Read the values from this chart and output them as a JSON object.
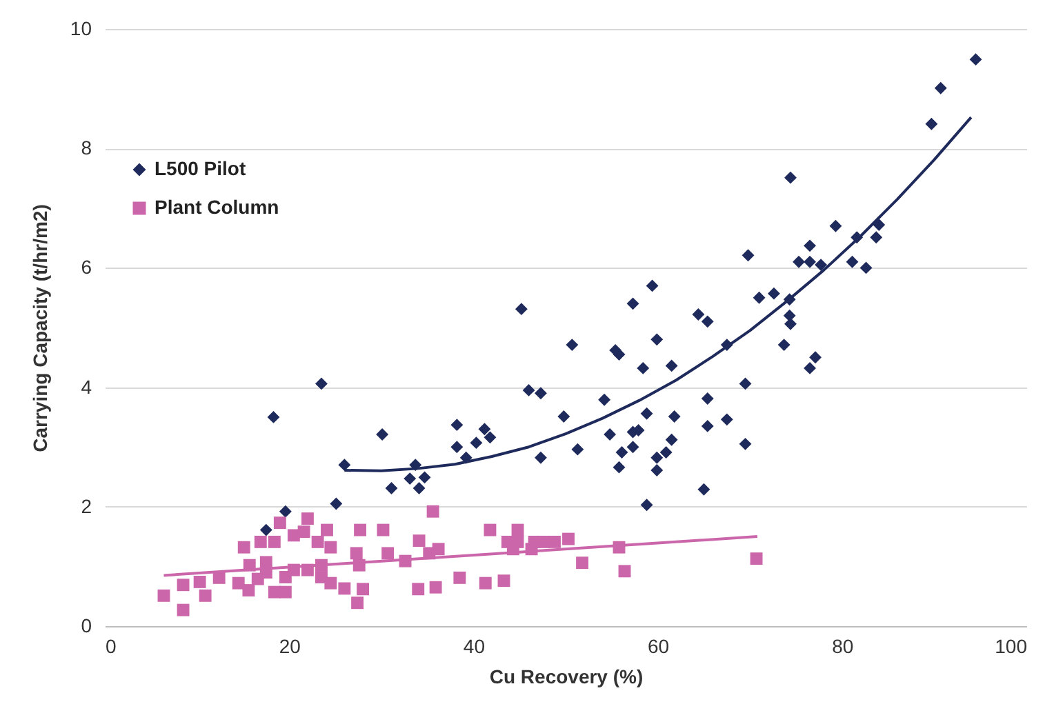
{
  "chart_data": {
    "type": "scatter",
    "xlabel": "Cu Recovery (%)",
    "ylabel": "Carrying Capacity (t/hr/m2)",
    "xlim": [
      0,
      100
    ],
    "xticks": [
      0,
      20,
      40,
      60,
      80,
      100
    ],
    "ylim": [
      0,
      10
    ],
    "yticks": [
      0,
      2,
      4,
      6,
      8,
      10
    ],
    "grid": "y",
    "legend": "top left",
    "series": [
      {
        "name": "L500 Pilot",
        "color": "#1f2a5c",
        "marker": "diamond",
        "x": [
          18.3,
          23.5,
          30.1,
          38.2,
          38.2,
          26.0,
          33.7,
          33.1,
          34.7,
          31.1,
          34.1,
          25.1,
          19.6,
          17.5,
          39.2,
          40.3,
          41.2,
          41.8,
          45.2,
          46.0,
          47.3,
          47.3,
          49.8,
          50.7,
          51.3,
          54.2,
          54.8,
          55.4,
          55.8,
          55.8,
          56.1,
          57.3,
          57.3,
          57.9,
          57.3,
          58.4,
          58.8,
          58.8,
          59.4,
          59.9,
          59.9,
          59.9,
          60.9,
          61.5,
          61.5,
          61.8,
          64.4,
          65.4,
          65.4,
          65.4,
          65.0,
          67.5,
          67.5,
          69.5,
          69.5,
          69.8,
          71.0,
          72.6,
          74.3,
          74.3,
          74.4,
          73.7,
          74.4,
          75.3,
          76.5,
          76.5,
          77.7,
          77.1,
          76.5,
          79.3,
          81.1,
          81.6,
          82.6,
          83.7,
          84.0,
          89.7,
          90.7,
          94.5
        ],
        "values": [
          3.5,
          4.06,
          3.21,
          3.37,
          3.0,
          2.7,
          2.7,
          2.47,
          2.49,
          2.31,
          2.31,
          2.05,
          1.92,
          1.61,
          2.82,
          3.07,
          3.3,
          3.16,
          5.31,
          3.95,
          3.9,
          2.82,
          3.51,
          4.71,
          2.96,
          3.79,
          3.21,
          4.62,
          4.55,
          2.66,
          2.91,
          5.4,
          3.25,
          3.28,
          3.0,
          4.32,
          3.56,
          2.03,
          5.7,
          4.8,
          2.82,
          2.61,
          2.91,
          3.12,
          4.36,
          3.51,
          5.22,
          5.1,
          3.81,
          3.35,
          2.29,
          4.71,
          3.46,
          4.06,
          3.05,
          6.21,
          5.5,
          5.57,
          5.47,
          5.2,
          5.06,
          4.71,
          7.51,
          6.1,
          6.37,
          6.1,
          6.05,
          4.5,
          4.32,
          6.7,
          6.1,
          6.51,
          6.0,
          6.51,
          6.72,
          8.41,
          9.01,
          9.49
        ]
      },
      {
        "name": "Plant Column",
        "color": "#cc66aa",
        "marker": "square",
        "x": [
          6.4,
          8.5,
          8.5,
          10.3,
          10.9,
          12.4,
          14.5,
          15.6,
          15.1,
          15.7,
          16.6,
          16.9,
          17.5,
          17.5,
          18.4,
          19.0,
          18.4,
          19.6,
          19.6,
          20.5,
          20.5,
          21.6,
          22.0,
          22.0,
          23.1,
          23.5,
          23.5,
          24.1,
          24.5,
          24.5,
          26.0,
          27.4,
          28.0,
          27.3,
          27.6,
          27.7,
          30.2,
          30.7,
          32.6,
          34.0,
          34.1,
          35.2,
          35.6,
          35.9,
          36.2,
          38.5,
          41.3,
          41.8,
          43.3,
          43.7,
          44.3,
          44.8,
          44.8,
          46.3,
          46.6,
          47.6,
          48.8,
          50.3,
          51.8,
          55.8,
          56.4,
          70.7
        ],
        "values": [
          0.51,
          0.27,
          0.69,
          0.74,
          0.51,
          0.81,
          0.72,
          0.6,
          1.32,
          1.02,
          0.79,
          1.41,
          1.07,
          0.9,
          1.41,
          1.73,
          0.57,
          0.57,
          0.82,
          1.52,
          0.94,
          1.58,
          1.8,
          0.94,
          1.41,
          1.02,
          0.82,
          1.61,
          1.32,
          0.72,
          0.63,
          0.39,
          0.62,
          1.22,
          1.02,
          1.61,
          1.61,
          1.22,
          1.09,
          0.62,
          1.43,
          1.22,
          1.92,
          0.65,
          1.29,
          0.81,
          0.72,
          1.61,
          0.76,
          1.41,
          1.29,
          1.61,
          1.41,
          1.29,
          1.41,
          1.41,
          1.41,
          1.46,
          1.06,
          1.32,
          0.92,
          1.13
        ]
      },
      {
        "type": "line",
        "color": "#1f2a5c",
        "x": [
          26,
          30,
          34,
          38,
          42,
          46,
          50,
          54,
          58,
          62,
          66,
          70,
          74,
          78,
          82,
          86,
          90,
          94
        ],
        "values": [
          2.61,
          2.6,
          2.64,
          2.71,
          2.84,
          3.0,
          3.22,
          3.48,
          3.78,
          4.12,
          4.52,
          4.95,
          5.44,
          5.96,
          6.53,
          7.15,
          7.81,
          8.52
        ]
      },
      {
        "type": "line",
        "color": "#cc66aa",
        "x": [
          6.4,
          70.8
        ],
        "values": [
          0.85,
          1.5
        ]
      }
    ]
  }
}
